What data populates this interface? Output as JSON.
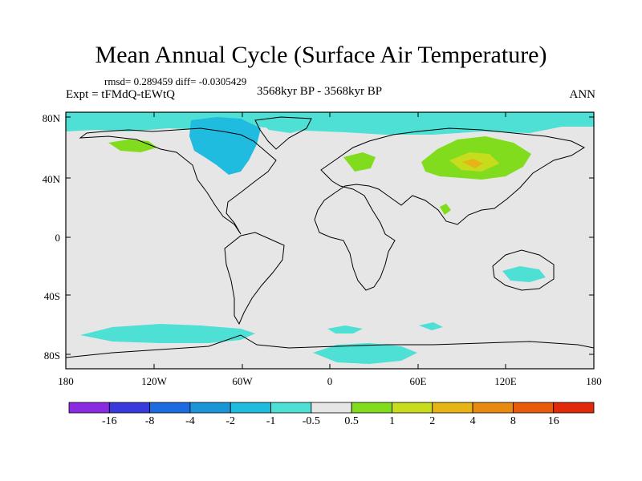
{
  "title": "Mean Annual Cycle (Surface Air Temperature)",
  "stats": "rmsd= 0.289459 diff= -0.0305429",
  "experiment": "Expt = tFMdQ-tEWtQ",
  "period": "3568kyr BP - 3568kyr BP",
  "season": "ANN",
  "lat_labels": [
    "80N",
    "40N",
    "0",
    "40S",
    "80S"
  ],
  "lon_labels": [
    "180",
    "120W",
    "60W",
    "0",
    "60E",
    "120E",
    "180"
  ],
  "colorbar": {
    "labels": [
      "-16",
      "-8",
      "-4",
      "-2",
      "-1",
      "-0.5",
      "0.5",
      "1",
      "2",
      "4",
      "8",
      "16"
    ],
    "colors": [
      "#8a2be2",
      "#3a3adc",
      "#1c6be0",
      "#1a96d8",
      "#20bce0",
      "#4ee0d4",
      "#e6e6e6",
      "#82dc1e",
      "#c8dc1e",
      "#e6b414",
      "#e88a10",
      "#e85a0c",
      "#e02a0a"
    ]
  },
  "colors": {
    "land": "#e6e6e6",
    "cold_weak": "#4ee0d4",
    "cold_mid": "#20bce0",
    "warm_weak": "#82dc1e",
    "warm_mid": "#c8dc1e",
    "warm_strong": "#e6b414"
  }
}
